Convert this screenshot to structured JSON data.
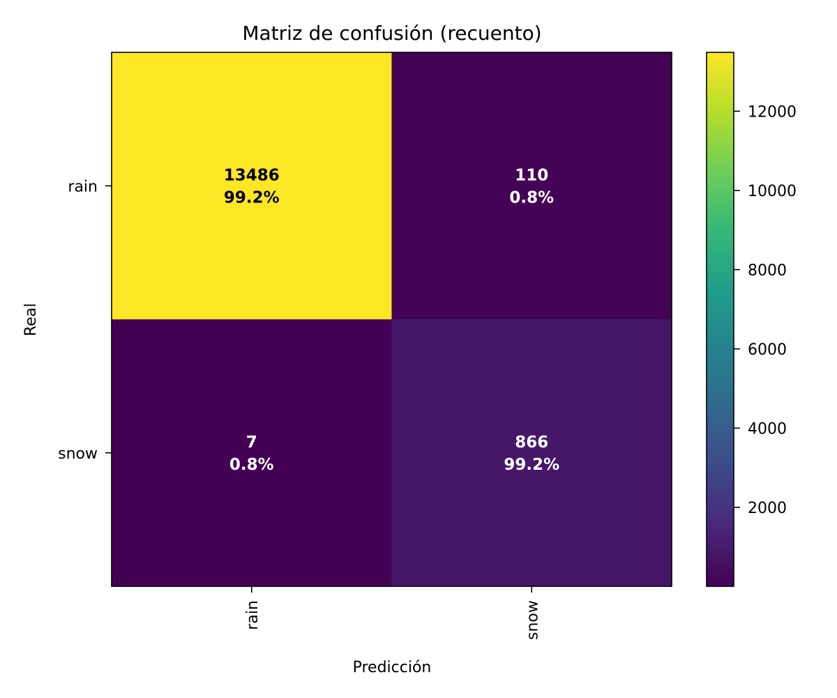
{
  "chart_data": {
    "type": "heatmap",
    "title": "Matriz de confusión (recuento)",
    "xlabel": "Predicción",
    "ylabel": "Real",
    "x_categories": [
      "rain",
      "snow"
    ],
    "y_categories": [
      "rain",
      "snow"
    ],
    "values": [
      [
        13486,
        110
      ],
      [
        7,
        866
      ]
    ],
    "cell_labels": [
      [
        {
          "count": "13486",
          "pct": "99.2%"
        },
        {
          "count": "110",
          "pct": "0.8%"
        }
      ],
      [
        {
          "count": "7",
          "pct": "0.8%"
        },
        {
          "count": "866",
          "pct": "99.2%"
        }
      ]
    ],
    "colormap": "viridis",
    "color_range": [
      7,
      13486
    ],
    "colorbar_ticks": [
      2000,
      4000,
      6000,
      8000,
      10000,
      12000
    ],
    "colorbar_tick_labels": [
      "2000",
      "4000",
      "6000",
      "8000",
      "10000",
      "12000"
    ],
    "colors": {
      "viridis_stops": [
        "#440154",
        "#482878",
        "#3e4989",
        "#31688e",
        "#26828e",
        "#1f9e89",
        "#35b779",
        "#6ece58",
        "#b5de2b",
        "#fde725"
      ],
      "label_dark": "#000000",
      "label_light": "#ffffff"
    },
    "grid": false,
    "legend": "colorbar-right"
  }
}
